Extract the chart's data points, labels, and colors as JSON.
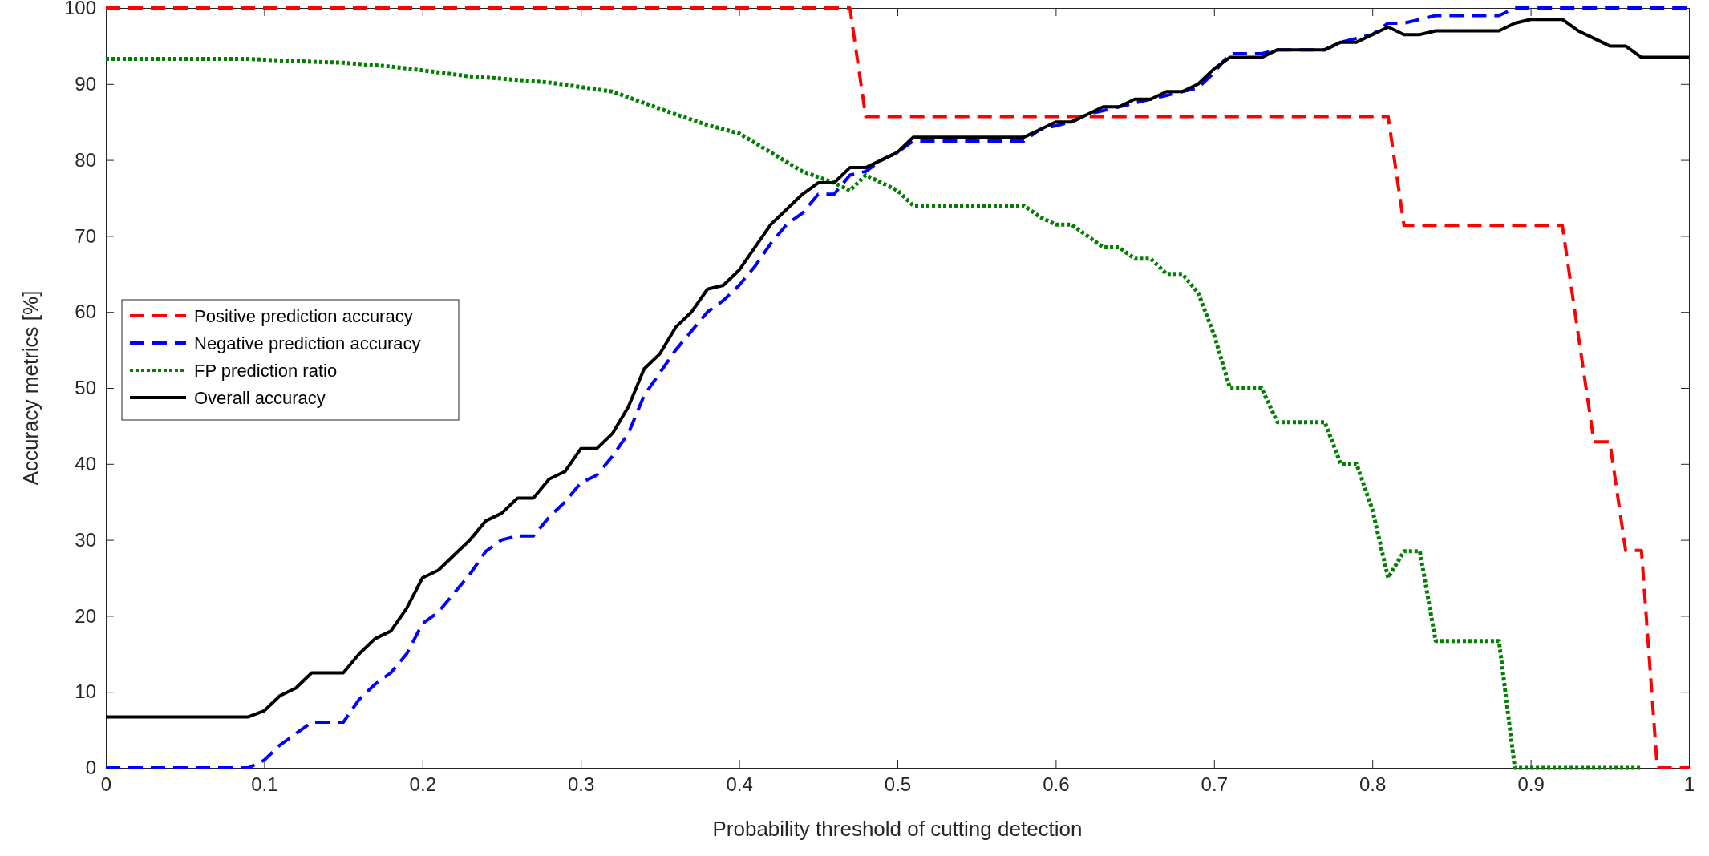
{
  "chart_data": {
    "type": "line",
    "xlabel": "Probability threshold of cutting detection",
    "ylabel": "Accuracy metrics [%]",
    "xlim": [
      0,
      1
    ],
    "ylim": [
      0,
      100
    ],
    "xticks": [
      0,
      0.1,
      0.2,
      0.3,
      0.4,
      0.5,
      0.6,
      0.7,
      0.8,
      0.9,
      1
    ],
    "yticks": [
      0,
      10,
      20,
      30,
      40,
      50,
      60,
      70,
      80,
      90,
      100
    ],
    "grid": false,
    "legend": "left",
    "marker": "none",
    "series": [
      {
        "name": "Positive prediction accuracy",
        "color": "#ff0000",
        "line_style": "dashed",
        "x": [
          0,
          0.47,
          0.48,
          0.81,
          0.82,
          0.92,
          0.93,
          0.94,
          0.95,
          0.96,
          0.97,
          0.98,
          1
        ],
        "values": [
          100,
          100,
          85.7,
          85.7,
          71.4,
          71.4,
          57.1,
          42.9,
          42.9,
          28.6,
          28.6,
          0,
          0
        ]
      },
      {
        "name": "Negative prediction accuracy",
        "color": "#0000ff",
        "line_style": "dashed",
        "x": [
          0,
          0.09,
          0.1,
          0.11,
          0.12,
          0.13,
          0.14,
          0.15,
          0.16,
          0.17,
          0.18,
          0.19,
          0.2,
          0.21,
          0.22,
          0.23,
          0.24,
          0.25,
          0.26,
          0.27,
          0.28,
          0.29,
          0.3,
          0.31,
          0.32,
          0.33,
          0.34,
          0.35,
          0.36,
          0.37,
          0.38,
          0.39,
          0.4,
          0.41,
          0.42,
          0.43,
          0.44,
          0.45,
          0.46,
          0.47,
          0.48,
          0.49,
          0.5,
          0.51,
          0.58,
          0.59,
          0.6,
          0.61,
          0.62,
          0.63,
          0.64,
          0.65,
          0.66,
          0.67,
          0.68,
          0.69,
          0.7,
          0.71,
          0.73,
          0.74,
          0.77,
          0.78,
          0.79,
          0.8,
          0.81,
          0.82,
          0.83,
          0.84,
          0.88,
          0.89,
          1
        ],
        "values": [
          0,
          0,
          1,
          3,
          4.5,
          6,
          6,
          6,
          9,
          11,
          12.5,
          15,
          19,
          20.5,
          23,
          25.5,
          28.5,
          30,
          30.5,
          30.5,
          33,
          35,
          37.5,
          38.5,
          41,
          44,
          49,
          52,
          55,
          57.5,
          60,
          61.5,
          63.5,
          66,
          69,
          71.5,
          73,
          75.5,
          75.5,
          78,
          78.5,
          80,
          81,
          82.5,
          82.5,
          84,
          84.5,
          85,
          86,
          86.5,
          87,
          87.5,
          88,
          88.5,
          89,
          89.5,
          91.5,
          94,
          94,
          94.5,
          94.5,
          95.5,
          96,
          96.5,
          98,
          98,
          98.5,
          99,
          99,
          100,
          100
        ]
      },
      {
        "name": "FP prediction ratio",
        "color": "#007f00",
        "line_style": "dotted",
        "x": [
          0,
          0.09,
          0.1,
          0.12,
          0.15,
          0.18,
          0.2,
          0.23,
          0.25,
          0.28,
          0.3,
          0.32,
          0.34,
          0.36,
          0.38,
          0.4,
          0.42,
          0.44,
          0.46,
          0.47,
          0.48,
          0.5,
          0.51,
          0.58,
          0.59,
          0.6,
          0.61,
          0.62,
          0.63,
          0.64,
          0.65,
          0.66,
          0.67,
          0.68,
          0.69,
          0.7,
          0.71,
          0.73,
          0.74,
          0.77,
          0.78,
          0.79,
          0.8,
          0.81,
          0.82,
          0.83,
          0.84,
          0.88,
          0.89,
          0.97
        ],
        "values": [
          93.3,
          93.3,
          93.2,
          93,
          92.8,
          92.3,
          91.8,
          91,
          90.7,
          90.2,
          89.6,
          89,
          87.5,
          86,
          84.6,
          83.5,
          81,
          78.5,
          77,
          76,
          78,
          76,
          74,
          74,
          72.5,
          71.5,
          71.5,
          70,
          68.5,
          68.5,
          67,
          67,
          65,
          65,
          62.5,
          57,
          50,
          50,
          45.5,
          45.5,
          40,
          40,
          34,
          25,
          28.5,
          28.5,
          16.7,
          16.7,
          0,
          0
        ]
      },
      {
        "name": "Overall accuracy",
        "color": "#000000",
        "line_style": "solid",
        "x": [
          0,
          0.09,
          0.1,
          0.11,
          0.12,
          0.13,
          0.14,
          0.15,
          0.16,
          0.17,
          0.18,
          0.19,
          0.2,
          0.21,
          0.22,
          0.23,
          0.24,
          0.25,
          0.26,
          0.27,
          0.28,
          0.29,
          0.3,
          0.31,
          0.32,
          0.33,
          0.34,
          0.35,
          0.36,
          0.37,
          0.38,
          0.39,
          0.4,
          0.41,
          0.42,
          0.43,
          0.44,
          0.45,
          0.46,
          0.47,
          0.48,
          0.49,
          0.5,
          0.51,
          0.58,
          0.59,
          0.6,
          0.61,
          0.62,
          0.63,
          0.64,
          0.65,
          0.66,
          0.67,
          0.68,
          0.69,
          0.7,
          0.71,
          0.73,
          0.74,
          0.77,
          0.78,
          0.79,
          0.8,
          0.81,
          0.82,
          0.83,
          0.84,
          0.88,
          0.89,
          0.9,
          0.92,
          0.93,
          0.94,
          0.95,
          0.96,
          0.97,
          1
        ],
        "values": [
          6.7,
          6.7,
          7.5,
          9.5,
          10.5,
          12.5,
          12.5,
          12.5,
          15,
          17,
          18,
          21,
          25,
          26,
          28,
          30,
          32.5,
          33.5,
          35.5,
          35.5,
          38,
          39,
          42,
          42,
          44,
          47.5,
          52.5,
          54.5,
          58,
          60,
          63,
          63.5,
          65.5,
          68.5,
          71.5,
          73.5,
          75.5,
          77,
          77,
          79,
          79,
          80,
          81,
          83,
          83,
          84,
          85,
          85,
          86,
          87,
          87,
          88,
          88,
          89,
          89,
          90,
          92,
          93.5,
          93.5,
          94.5,
          94.5,
          95.5,
          95.5,
          96.5,
          97.5,
          96.5,
          96.5,
          97,
          97,
          98,
          98.5,
          98.5,
          97,
          96,
          95,
          95,
          93.5,
          93.5
        ]
      }
    ]
  }
}
